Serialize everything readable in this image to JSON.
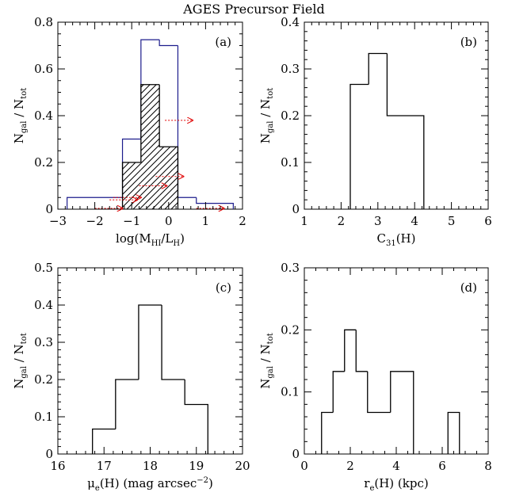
{
  "figure": {
    "title": "AGES Precursor Field"
  },
  "chart_data": [
    {
      "type": "histogram",
      "panel": "(a)",
      "xlabel": {
        "main": "log(M",
        "sub1": "HI",
        "mid": "/L",
        "sub2": "H",
        "end": ")"
      },
      "ylabel": {
        "n": "N",
        "nsub": "gal",
        "slash": " / ",
        "d": "N",
        "dsub": "tot"
      },
      "xlim": [
        -3,
        2
      ],
      "ylim": [
        0,
        0.8
      ],
      "xticks": [
        -3,
        -2,
        -1,
        0,
        1,
        2
      ],
      "yticks": [
        0,
        0.2,
        0.4,
        0.6,
        0.8
      ],
      "series": [
        {
          "style": "blue-outline",
          "color": "#1c1c8c",
          "bins": [
            [
              -2.75,
              -2.25,
              0.05
            ],
            [
              -2.25,
              -1.75,
              0.05
            ],
            [
              -1.75,
              -1.25,
              0.05
            ],
            [
              -1.25,
              -0.75,
              0.3
            ],
            [
              -0.75,
              -0.25,
              0.725
            ],
            [
              -0.25,
              0.25,
              0.7
            ],
            [
              0.25,
              0.75,
              0.05
            ],
            [
              0.75,
              1.25,
              0.025
            ],
            [
              1.25,
              1.75,
              0.025
            ]
          ]
        },
        {
          "style": "black-hatched",
          "color": "#000000",
          "bins": [
            [
              -1.25,
              -0.75,
              0.2
            ],
            [
              -0.75,
              -0.25,
              0.533
            ],
            [
              -0.25,
              0.25,
              0.267
            ]
          ]
        }
      ],
      "lower_limits": [
        {
          "x": -0.1,
          "y": 0.38
        },
        {
          "x": -0.35,
          "y": 0.14
        },
        {
          "x": -1.5,
          "y": 0.05
        },
        {
          "x": -0.8,
          "y": 0.1
        },
        {
          "x": -2.0,
          "y": 0.0
        },
        {
          "x": 0.75,
          "y": 0.0
        },
        {
          "x": -1.6,
          "y": 0.04
        }
      ],
      "limit_color": "#e00000"
    },
    {
      "type": "histogram",
      "panel": "(b)",
      "xlabel": {
        "main": "C",
        "sub1": "31",
        "end": "(H)"
      },
      "ylabel": {
        "n": "N",
        "nsub": "gal",
        "slash": " / ",
        "d": "N",
        "dsub": "tot"
      },
      "xlim": [
        1,
        6
      ],
      "ylim": [
        0,
        0.4
      ],
      "xticks": [
        1,
        2,
        3,
        4,
        5,
        6
      ],
      "yticks": [
        0,
        0.1,
        0.2,
        0.3,
        0.4
      ],
      "series": [
        {
          "style": "black-outline",
          "color": "#000000",
          "bins": [
            [
              2.25,
              2.75,
              0.267
            ],
            [
              2.75,
              3.25,
              0.333
            ],
            [
              3.25,
              3.75,
              0.2
            ],
            [
              3.75,
              4.25,
              0.2
            ]
          ]
        }
      ]
    },
    {
      "type": "histogram",
      "panel": "(c)",
      "xlabel": {
        "mu": "μ",
        "sub1": "e",
        "main": "(H) (mag arcsec",
        "sup": "−2",
        "end": ")"
      },
      "ylabel": {
        "n": "N",
        "nsub": "gal",
        "slash": " / ",
        "d": "N",
        "dsub": "tot"
      },
      "xlim": [
        16,
        20
      ],
      "ylim": [
        0,
        0.5
      ],
      "xticks": [
        16,
        17,
        18,
        19,
        20
      ],
      "yticks": [
        0,
        0.1,
        0.2,
        0.3,
        0.4,
        0.5
      ],
      "series": [
        {
          "style": "black-outline",
          "color": "#000000",
          "bins": [
            [
              16.75,
              17.25,
              0.067
            ],
            [
              17.25,
              17.75,
              0.2
            ],
            [
              17.75,
              18.25,
              0.4
            ],
            [
              18.25,
              18.75,
              0.2
            ],
            [
              18.75,
              19.25,
              0.133
            ]
          ]
        }
      ]
    },
    {
      "type": "histogram",
      "panel": "(d)",
      "xlabel": {
        "main": "r",
        "sub1": "e",
        "end": "(H) (kpc)"
      },
      "ylabel": {
        "n": "N",
        "nsub": "gal",
        "slash": " / ",
        "d": "N",
        "dsub": "tot"
      },
      "xlim": [
        0,
        8
      ],
      "ylim": [
        0,
        0.3
      ],
      "xticks": [
        0,
        2,
        4,
        6,
        8
      ],
      "yticks": [
        0,
        0.1,
        0.2,
        0.3
      ],
      "series": [
        {
          "style": "black-outline",
          "color": "#000000",
          "bins": [
            [
              0.75,
              1.25,
              0.067
            ],
            [
              1.25,
              1.75,
              0.133
            ],
            [
              1.75,
              2.25,
              0.2
            ],
            [
              2.25,
              2.75,
              0.133
            ],
            [
              2.75,
              3.75,
              0.067
            ],
            [
              3.75,
              4.75,
              0.133
            ],
            [
              6.25,
              6.75,
              0.067
            ]
          ]
        }
      ]
    }
  ]
}
